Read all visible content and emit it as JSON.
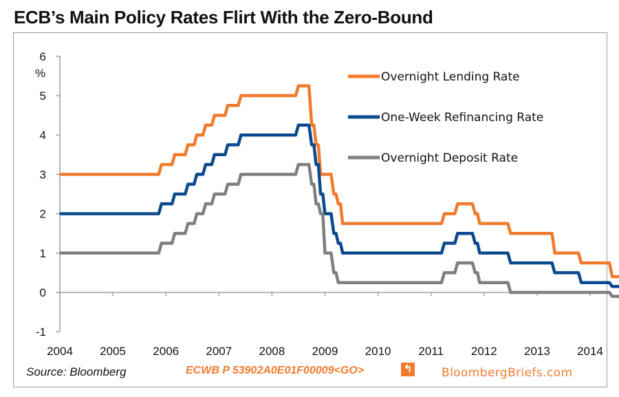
{
  "title": "ECB’s Main Policy Rates Flirt With the Zero-Bound",
  "footer": {
    "source": "Source: Bloomberg",
    "ticker": "ECWB P 53902A0E01F00009<GO>",
    "ticker_icon": "bloomberg-terminal-icon",
    "brand": "BloombergBriefs.com"
  },
  "chart_data": {
    "type": "line",
    "title": "ECB’s Main Policy Rates Flirt With the Zero-Bound",
    "ylabel": "%",
    "xlabel": "",
    "xlim": [
      2004,
      2014
    ],
    "ylim": [
      -1,
      6
    ],
    "xticks": [
      "2004",
      "2005",
      "2006",
      "2007",
      "2008",
      "2009",
      "2010",
      "2011",
      "2012",
      "2013",
      "2014"
    ],
    "yticks": [
      "6",
      "5",
      "4",
      "3",
      "2",
      "1",
      "0",
      "-1"
    ],
    "grid": false,
    "legend_position": "top-right",
    "series": [
      {
        "name": "Overnight Lending Rate",
        "color": "#f07b2c",
        "x": [
          "2004-01",
          "2005-12",
          "2006-03",
          "2006-06",
          "2006-08",
          "2006-10",
          "2006-12",
          "2007-03",
          "2007-06",
          "2008-07",
          "2008-10",
          "2008-11",
          "2008-12",
          "2009-01",
          "2009-03",
          "2009-04",
          "2009-05",
          "2011-04",
          "2011-07",
          "2011-11",
          "2011-12",
          "2012-07",
          "2013-05",
          "2013-11",
          "2014-06",
          "2014-09"
        ],
        "y": [
          3.0,
          3.25,
          3.5,
          3.75,
          4.0,
          4.25,
          4.5,
          4.75,
          5.0,
          5.25,
          4.25,
          3.75,
          3.0,
          3.0,
          2.5,
          2.25,
          1.75,
          2.0,
          2.25,
          2.0,
          1.75,
          1.5,
          1.0,
          0.75,
          0.4,
          0.3
        ]
      },
      {
        "name": "One-Week Refinancing Rate",
        "color": "#0b4a8f",
        "x": [
          "2004-01",
          "2005-12",
          "2006-03",
          "2006-06",
          "2006-08",
          "2006-10",
          "2006-12",
          "2007-03",
          "2007-06",
          "2008-07",
          "2008-10",
          "2008-11",
          "2008-12",
          "2009-01",
          "2009-03",
          "2009-04",
          "2009-05",
          "2011-04",
          "2011-07",
          "2011-11",
          "2011-12",
          "2012-07",
          "2013-05",
          "2013-11",
          "2014-06",
          "2014-09"
        ],
        "y": [
          2.0,
          2.25,
          2.5,
          2.75,
          3.0,
          3.25,
          3.5,
          3.75,
          4.0,
          4.25,
          3.75,
          3.25,
          2.5,
          2.0,
          1.5,
          1.25,
          1.0,
          1.25,
          1.5,
          1.25,
          1.0,
          0.75,
          0.5,
          0.25,
          0.15,
          0.05
        ]
      },
      {
        "name": "Overnight Deposit Rate",
        "color": "#7f7f7f",
        "x": [
          "2004-01",
          "2005-12",
          "2006-03",
          "2006-06",
          "2006-08",
          "2006-10",
          "2006-12",
          "2007-03",
          "2007-06",
          "2008-07",
          "2008-10",
          "2008-11",
          "2008-12",
          "2009-01",
          "2009-03",
          "2009-04",
          "2009-05",
          "2011-04",
          "2011-07",
          "2011-11",
          "2011-12",
          "2012-07",
          "2013-05",
          "2013-11",
          "2014-06",
          "2014-09"
        ],
        "y": [
          1.0,
          1.25,
          1.5,
          1.75,
          2.0,
          2.25,
          2.5,
          2.75,
          3.0,
          3.25,
          2.75,
          2.25,
          2.0,
          1.0,
          0.5,
          0.25,
          0.25,
          0.5,
          0.75,
          0.5,
          0.25,
          0.0,
          0.0,
          0.0,
          -0.1,
          -0.2
        ]
      }
    ]
  }
}
